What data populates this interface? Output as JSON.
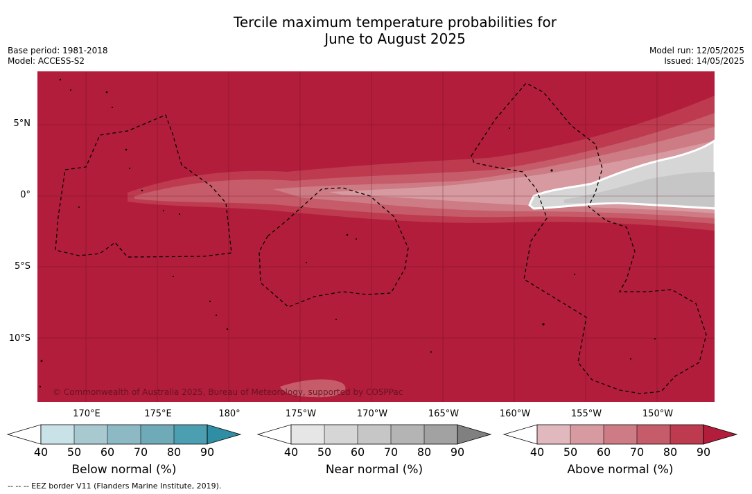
{
  "title": {
    "line1": "Tercile maximum temperature probabilities for",
    "line2": "June to August 2025"
  },
  "meta": {
    "base_period": "Base period: 1981-2018",
    "model": "Model: ACCESS-S2",
    "model_run": "Model run: 12/05/2025",
    "issued": "Issued: 14/05/2025"
  },
  "map": {
    "lat_labels": [
      "5°N",
      "0°",
      "5°S",
      "10°S"
    ],
    "lon_labels": [
      "170°E",
      "175°E",
      "180°",
      "175°W",
      "170°W",
      "165°W",
      "160°W",
      "155°W",
      "150°W"
    ],
    "copyright": "© Commonwealth of Australia 2025, Bureau of Meteorology, supported by COSPPac",
    "colors": {
      "above_90": "#b21d3b",
      "above_80": "#bd3a4f",
      "above_70": "#c65c69",
      "above_60": "#cd7b84",
      "above_50": "#d79aa0",
      "near_40": "#d6d6d6",
      "near_50": "#c6c6c6",
      "eez_border": "#000000"
    }
  },
  "colorbars": [
    {
      "label": "Below normal (%)",
      "ticks": [
        "40",
        "50",
        "60",
        "70",
        "80",
        "90"
      ],
      "colors": [
        "#c8e2e8",
        "#a9c9d1",
        "#8db9c4",
        "#6eaab8",
        "#4b9fb1",
        "#2f8da4"
      ]
    },
    {
      "label": "Near normal (%)",
      "ticks": [
        "40",
        "50",
        "60",
        "70",
        "80",
        "90"
      ],
      "colors": [
        "#e6e6e6",
        "#d6d6d6",
        "#c6c6c6",
        "#b4b4b4",
        "#a2a2a2",
        "#808080"
      ]
    },
    {
      "label": "Above normal (%)",
      "ticks": [
        "40",
        "50",
        "60",
        "70",
        "80",
        "90"
      ],
      "colors": [
        "#e1b8bd",
        "#d79aa0",
        "#cd7b84",
        "#c65c69",
        "#bd3a4f",
        "#b21d3b"
      ]
    }
  ],
  "footnote": "--  --  -- EEZ border V11 (Flanders Marine Institute, 2019)."
}
